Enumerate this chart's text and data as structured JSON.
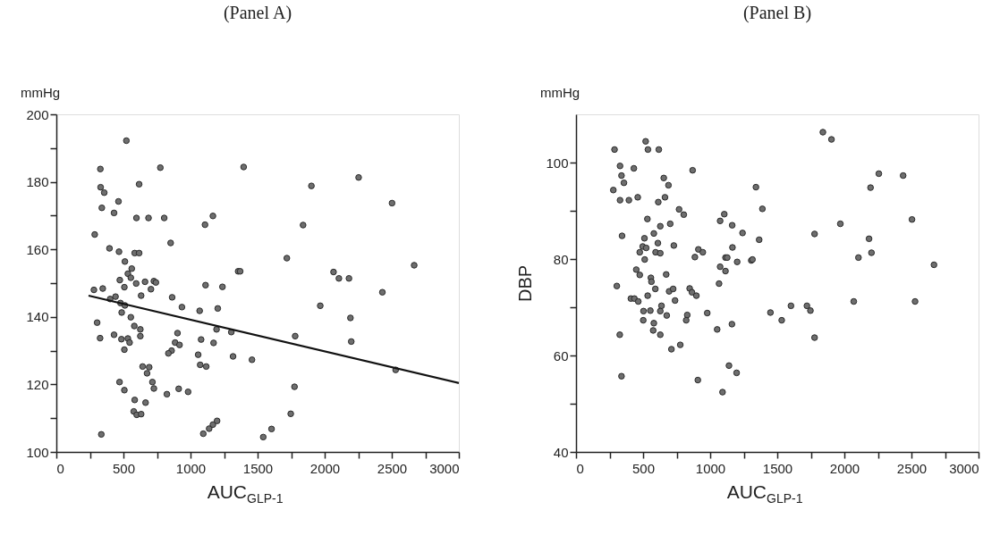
{
  "chart_data": [
    {
      "type": "scatter",
      "title": "(Panel A)",
      "xlabel": "AUC$_{GLP-1}$",
      "annotations": [
        "mmHg"
      ],
      "xlim": [
        0,
        3000
      ],
      "ylim": [
        100,
        200
      ],
      "xticks": [
        0,
        {
          "value": 250,
          "label": null
        },
        500,
        {
          "value": 750,
          "label": null
        },
        1000,
        {
          "value": 1250,
          "label": null
        },
        1500,
        {
          "value": 1750,
          "label": null
        },
        2000,
        {
          "value": 2250,
          "label": null
        },
        2500,
        {
          "value": 2750,
          "label": null
        },
        3000
      ],
      "yticks": [
        100,
        {
          "value": 110,
          "label": null
        },
        120,
        {
          "value": 130,
          "label": null
        },
        140,
        {
          "value": 150,
          "label": null
        },
        160,
        {
          "value": 170,
          "label": null
        },
        180,
        {
          "value": 190,
          "label": null
        },
        200
      ],
      "grid": false,
      "series": [
        {
          "marker": "circle",
          "color": "#6e6e6e",
          "x": [
            522,
            328,
            775,
            1396,
            330,
            357,
            617,
            463,
            339,
            430,
            597,
            687,
            804,
            1108,
            1167,
            286,
            852,
            396,
            467,
            584,
            617,
            511,
            562,
            533,
            555,
            473,
            595,
            661,
            727,
            742,
            1355,
            1370,
            507,
            705,
            1112,
            1238,
            280,
            346,
            632,
            441,
            401,
            863,
            478,
            511,
            936,
            487,
            1068,
            1203,
            555,
            304,
            581,
            626,
            626,
            430,
            326,
            485,
            533,
            546,
            507,
            903,
            885,
            918,
            859,
            835,
            1194,
            1079,
            1172,
            1304,
            1317,
            1458,
            1057,
            1072,
            1117,
            643,
            692,
            676,
            471,
            507,
            716,
            727,
            824,
            912,
            982,
            584,
            665,
            577,
            599,
            632,
            335,
            1095,
            1139,
            1167,
            1198,
            1542,
            1901,
            2253,
            2502,
            1839,
            1718,
            2667,
            2066,
            2106,
            2181,
            2430,
            1967,
            2192,
            1780,
            2198,
            2529,
            1775,
            1747,
            1604
          ],
          "values": [
            192.2,
            183.8,
            184.2,
            184.4,
            178.4,
            176.8,
            179.3,
            174.2,
            172.3,
            170.8,
            169.3,
            169.3,
            169.3,
            167.3,
            169.9,
            164.4,
            161.9,
            160.3,
            159.3,
            158.9,
            158.9,
            156.4,
            154.3,
            152.8,
            151.6,
            150.9,
            149.9,
            150.4,
            150.6,
            150.2,
            153.5,
            153.5,
            148.8,
            148.2,
            149.4,
            148.9,
            148.0,
            148.4,
            146.3,
            146.0,
            145.3,
            145.8,
            144.1,
            143.4,
            142.9,
            141.3,
            141.8,
            142.5,
            139.9,
            138.3,
            137.3,
            136.3,
            134.3,
            134.7,
            133.7,
            133.4,
            133.6,
            132.4,
            130.3,
            135.2,
            132.4,
            131.7,
            130.0,
            129.2,
            136.3,
            133.3,
            132.3,
            135.5,
            128.3,
            127.3,
            128.8,
            125.8,
            125.3,
            125.3,
            125.1,
            123.3,
            120.7,
            118.3,
            120.7,
            118.8,
            117.1,
            118.7,
            117.8,
            115.4,
            114.6,
            112.0,
            111.0,
            111.2,
            105.2,
            105.4,
            106.9,
            108.1,
            109.2,
            104.4,
            178.8,
            181.3,
            173.7,
            167.2,
            157.4,
            155.3,
            153.3,
            151.4,
            151.4,
            147.3,
            143.3,
            139.7,
            134.3,
            132.7,
            124.3,
            119.3,
            111.3,
            106.8
          ]
        },
        {
          "type": "line",
          "marker": "none",
          "line_style": "solid",
          "color": "#111111",
          "x": [
            240,
            3000
          ],
          "values": [
            146.3,
            120.4
          ]
        }
      ]
    },
    {
      "type": "scatter",
      "title": "(Panel B)",
      "xlabel": "AUC$_{GLP-1}$",
      "ylabel": "DBP",
      "annotations": [
        "mmHg"
      ],
      "xlim": [
        0,
        3000
      ],
      "ylim": [
        40,
        110
      ],
      "xticks": [
        0,
        {
          "value": 250,
          "label": null
        },
        500,
        {
          "value": 750,
          "label": null
        },
        1000,
        {
          "value": 1250,
          "label": null
        },
        1500,
        {
          "value": 1750,
          "label": null
        },
        2000,
        {
          "value": 2250,
          "label": null
        },
        2500,
        {
          "value": 2750,
          "label": null
        },
        3000
      ],
      "yticks": [
        40,
        {
          "value": 50,
          "label": null
        },
        60,
        {
          "value": 70,
          "label": null
        },
        80,
        {
          "value": 90,
          "label": null
        },
        100
      ],
      "grid": false,
      "series": [
        {
          "marker": "circle",
          "color": "#6e6e6e",
          "x": [
            287,
            278,
            328,
            339,
            357,
            328,
            394,
            431,
            460,
            519,
            536,
            617,
            869,
            654,
            689,
            663,
            613,
            343,
            532,
            628,
            702,
            768,
            803,
            510,
            580,
            610,
            729,
            497,
            523,
            475,
            593,
            628,
            512,
            886,
            912,
            945,
            449,
            475,
            672,
            558,
            562,
            304,
            591,
            694,
            724,
            847,
            864,
            897,
            534,
            409,
            435,
            464,
            738,
            503,
            554,
            637,
            628,
            676,
            829,
            821,
            501,
            580,
            575,
            628,
            326,
            711,
            777,
            978,
            1052,
            1162,
            339,
            908,
            1140,
            1197,
            1092,
            1066,
            1074,
            1114,
            1114,
            1127,
            1201,
            1166,
            1074,
            1105,
            1164,
            1241,
            1306,
            1315,
            1365,
            1341,
            1389,
            1449,
            1840,
            1904,
            2257,
            2438,
            2195,
            2504,
            1970,
            1778,
            2184,
            2202,
            2105,
            2668,
            2070,
            2527,
            1533,
            1602,
            1721,
            1747,
            1778
          ],
          "values": [
            102.7,
            94.3,
            99.3,
            97.3,
            95.8,
            92.2,
            92.2,
            98.8,
            92.8,
            104.4,
            102.7,
            102.7,
            98.4,
            96.8,
            95.3,
            92.8,
            91.8,
            84.8,
            88.3,
            86.8,
            87.3,
            90.3,
            89.2,
            84.3,
            85.3,
            83.3,
            82.8,
            82.6,
            82.3,
            81.4,
            81.4,
            81.2,
            79.9,
            80.4,
            82.0,
            81.4,
            77.8,
            76.7,
            76.8,
            76.1,
            75.3,
            74.4,
            73.8,
            73.3,
            73.8,
            73.9,
            73.1,
            72.4,
            72.4,
            71.8,
            71.8,
            71.2,
            71.4,
            69.2,
            69.3,
            70.3,
            69.2,
            68.3,
            68.4,
            67.3,
            67.3,
            66.7,
            65.2,
            64.3,
            64.3,
            61.3,
            62.2,
            68.8,
            65.4,
            66.5,
            55.7,
            54.9,
            57.9,
            56.4,
            52.4,
            74.9,
            78.4,
            77.5,
            80.3,
            80.3,
            79.4,
            82.4,
            87.9,
            89.3,
            87.0,
            85.4,
            79.7,
            79.9,
            84.0,
            94.9,
            90.4,
            68.9,
            106.3,
            104.8,
            97.7,
            97.3,
            94.8,
            88.2,
            87.3,
            85.2,
            84.2,
            81.3,
            80.3,
            78.8,
            71.2,
            71.2,
            67.3,
            70.3,
            70.3,
            69.3,
            63.7
          ]
        }
      ]
    }
  ]
}
